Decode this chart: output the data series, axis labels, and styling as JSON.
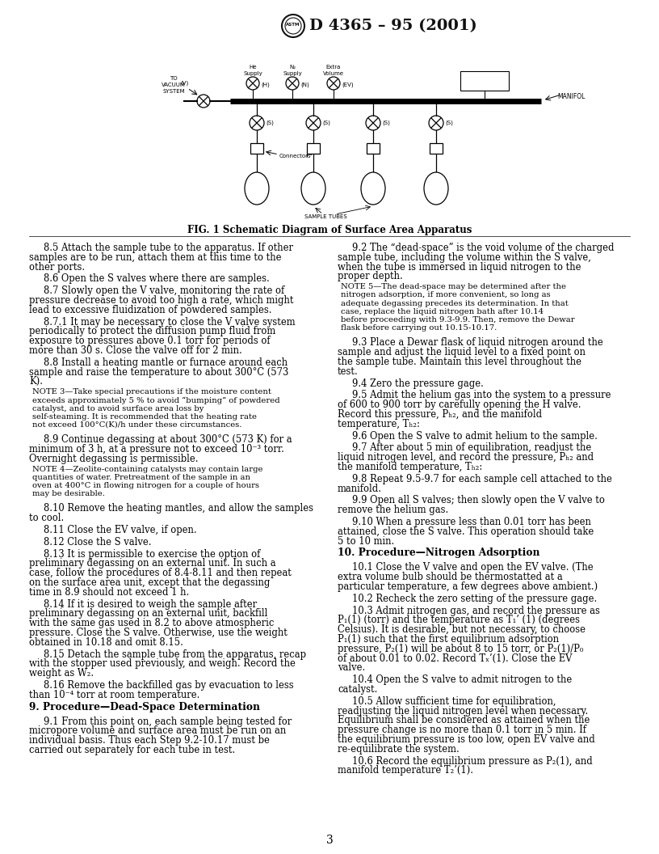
{
  "title": "D 4365 – 95 (2001)",
  "page_number": "3",
  "fig_caption": "FIG. 1 Schematic Diagram of Surface Area Apparatus",
  "background_color": "#ffffff",
  "text_color": "#000000",
  "left_column": [
    {
      "type": "body",
      "indent": true,
      "text": "8.5  Attach the sample tube to the apparatus. If other samples are to be run, attach them at this time to the other ports."
    },
    {
      "type": "body",
      "indent": true,
      "text": "8.6  Open the S valves where there are samples."
    },
    {
      "type": "body",
      "indent": true,
      "text": "8.7  Slowly open the V valve, monitoring the rate of pressure decrease to avoid too high a rate, which might lead to excessive fluidization of powdered samples."
    },
    {
      "type": "body",
      "indent": true,
      "text": "8.7.1  It may be necessary to close the V valve system periodically to protect the diffusion pump fluid from exposure to pressures above 0.1 torr for periods of more than 30 s. Close the valve off for 2 min."
    },
    {
      "type": "body",
      "indent": true,
      "text": "8.8  Install a heating mantle or furnace around each sample and raise the temperature to about 300°C (573 K)."
    },
    {
      "type": "note",
      "text": "NOTE 3—Take special precautions if the moisture content exceeds approximately 5 % to avoid “bumping” of powdered catalyst, and to avoid surface area loss by self-steaming. It is recommended that the heating rate not exceed 100°C(K)/h under these circumstances."
    },
    {
      "type": "body",
      "indent": true,
      "text": "8.9  Continue degassing at about 300°C (573 K) for a minimum of 3 h, at a pressure not to exceed 10⁻³ torr. Overnight degassing is permissible."
    },
    {
      "type": "note",
      "text": "NOTE 4—Zeolite-containing catalysts may contain large quantities of water. Pretreatment of the sample in an oven at 400°C in flowing nitrogen for a couple of hours may be desirable."
    },
    {
      "type": "body",
      "indent": true,
      "text": "8.10  Remove the heating mantles, and allow the samples to cool."
    },
    {
      "type": "body",
      "indent": true,
      "text": "8.11  Close the EV valve, if open."
    },
    {
      "type": "body",
      "indent": true,
      "text": "8.12  Close the S valve."
    },
    {
      "type": "body",
      "indent": true,
      "text": "8.13  It is permissible to exercise the option of preliminary degassing on an external unit. In such a case, follow the procedures of 8.4-8.11 and then repeat on the surface area unit, except that the degassing time in 8.9 should not exceed 1 h."
    },
    {
      "type": "body",
      "indent": true,
      "text": "8.14  If it is desired to weigh the sample after preliminary degassing on an external unit, backfill with the same gas used in 8.2 to above atmospheric pressure. Close the S valve. Otherwise, use the weight obtained in 10.18 and omit 8.15."
    },
    {
      "type": "body",
      "indent": true,
      "text": "8.15  Detach the sample tube from the apparatus, recap with the stopper used previously, and weigh. Record the weight as W₂."
    },
    {
      "type": "body",
      "indent": true,
      "text": "8.16  Remove the backfilled gas by evacuation to less than 10⁻⁴ torr at room temperature."
    },
    {
      "type": "section",
      "text": "9. Procedure—Dead-Space Determination"
    },
    {
      "type": "body",
      "indent": true,
      "text": "9.1  From this point on, each sample being tested for micropore volume and surface area must be run on an individual basis. Thus each Step 9.2-10.17 must be carried out separately for each tube in test."
    }
  ],
  "right_column": [
    {
      "type": "body",
      "indent": true,
      "text": "9.2  The “dead-space” is the void volume of the charged sample tube, including the volume within the S valve, when the tube is immersed in liquid nitrogen to the proper depth."
    },
    {
      "type": "note",
      "text": "NOTE 5—The dead-space may be determined after the nitrogen adsorption, if more convenient, so long as adequate degassing precedes its determination. In that case, replace the liquid nitrogen bath after 10.14 before proceeding with 9.3-9.9. Then, remove the Dewar flask before carrying out 10.15-10.17."
    },
    {
      "type": "body",
      "indent": true,
      "text": "9.3  Place a Dewar flask of liquid nitrogen around the sample and adjust the liquid level to a fixed point on the sample tube. Maintain this level throughout the test."
    },
    {
      "type": "body",
      "indent": true,
      "text": "9.4  Zero the pressure gage."
    },
    {
      "type": "body",
      "indent": true,
      "text": "9.5  Admit the helium gas into the system to a pressure of 600 to 900 torr by carefully opening the H valve. Record this pressure, Pₕ₂, and the manifold temperature, Tₕ₂:"
    },
    {
      "type": "body",
      "indent": true,
      "text": "9.6  Open the S valve to admit helium to the sample."
    },
    {
      "type": "body",
      "indent": true,
      "text": "9.7  After about 5 min of equilibration, readjust the liquid nitrogen level, and record the pressure, Pₕ₂ and the manifold temperature, Tₕ₂:"
    },
    {
      "type": "body",
      "indent": true,
      "text": "9.8  Repeat 9.5-9.7 for each sample cell attached to the manifold."
    },
    {
      "type": "body",
      "indent": true,
      "text": "9.9  Open all S valves; then slowly open the V valve to remove the helium gas."
    },
    {
      "type": "body",
      "indent": true,
      "text": "9.10  When a pressure less than 0.01 torr has been attained, close the S valve. This operation should take 5 to 10 min."
    },
    {
      "type": "section",
      "text": "10. Procedure—Nitrogen Adsorption"
    },
    {
      "type": "body",
      "indent": true,
      "text": "10.1  Close the V valve and open the EV valve. (The extra volume bulb should be thermostatted at a particular temperature, a few degrees above ambient.)"
    },
    {
      "type": "body",
      "indent": true,
      "text": "10.2  Recheck the zero setting of the pressure gage."
    },
    {
      "type": "body",
      "indent": true,
      "text": "10.3  Admit nitrogen gas, and record the pressure as P₁(1) (torr) and the temperature as T₁’ (1) (degrees Celsius). It is desirable, but not necessary, to choose P₁(1) such that the first equilibrium adsorption pressure, P₂(1) will be about 8 to 15 torr, or P₂(1)/P₀ of about 0.01 to 0.02. Record Tₓ’(1). Close the EV valve."
    },
    {
      "type": "body",
      "indent": true,
      "text": "10.4  Open the S valve to admit nitrogen to the catalyst."
    },
    {
      "type": "body",
      "indent": true,
      "text": "10.5  Allow sufficient time for equilibration, readjusting the liquid nitrogen level when necessary. Equilibrium shall be considered as attained when the pressure change is no more than 0.1 torr in 5 min. If the equilibrium pressure is too low, open EV valve and re-equilibrate the system."
    },
    {
      "type": "body",
      "indent": true,
      "text": "10.6  Record the equilibrium pressure as P₂(1), and manifold temperature T₂’(1)."
    }
  ]
}
